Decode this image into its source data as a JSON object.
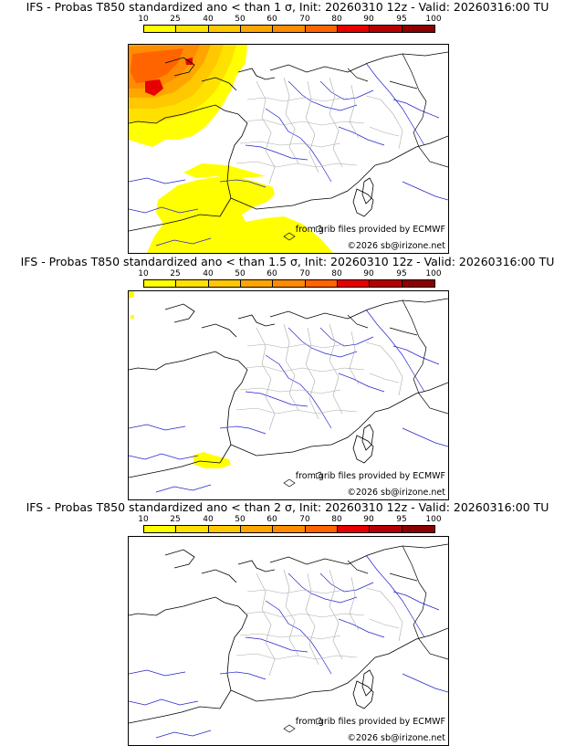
{
  "colors": {
    "c10": "#ffff00",
    "c25": "#ffe100",
    "c40": "#ffc800",
    "c50": "#ffa500",
    "c60": "#ff8c00",
    "c70": "#ff6400",
    "c80": "#e60000",
    "c90": "#b40000",
    "c95": "#8c0000",
    "c100": "#4a0000",
    "coast": "#000000",
    "rivers": "#0000cc",
    "borders": "#999999"
  },
  "scale": {
    "ticks": [
      "10",
      "25",
      "40",
      "50",
      "60",
      "70",
      "80",
      "90",
      "95",
      "100"
    ]
  },
  "panels": [
    {
      "title": "IFS - Probas T850  standardized ano < than 1 σ, Init: 20260310 12z - Valid: 20260316:00 TU",
      "source_credit": "from grib files provided by ECMWF",
      "copyright": "©2026 sb@irizone.net"
    },
    {
      "title": "IFS - Probas T850  standardized ano < than 1.5 σ, Init: 20260310 12z - Valid: 20260316:00 TU",
      "source_credit": "from grib files provided by ECMWF",
      "copyright": "©2026 sb@irizone.net"
    },
    {
      "title": "IFS - Probas T850  standardized ano < than 2 σ, Init: 20260310 12z - Valid: 20260316:00 TU",
      "source_credit": "from grib files provided by ECMWF",
      "copyright": "©2026 sb@irizone.net"
    }
  ]
}
